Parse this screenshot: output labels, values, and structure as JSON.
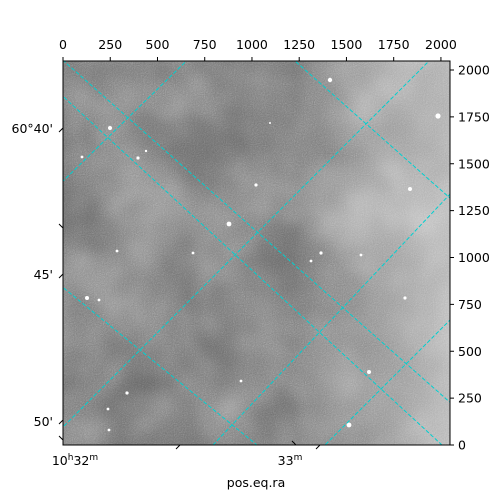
{
  "chart_data": {
    "type": "image",
    "title": "",
    "xlabel": "pos.eq.ra",
    "ylabel": "",
    "pixel_axes": {
      "x_ticks": [
        0,
        250,
        500,
        750,
        1000,
        1250,
        1500,
        1750,
        2000
      ],
      "y_ticks": [
        0,
        250,
        500,
        750,
        1000,
        1250,
        1500,
        1750,
        2000
      ],
      "x_tick_labels": [
        "0",
        "250",
        "500",
        "750",
        "1000",
        "1250",
        "1500",
        "1750",
        "2000"
      ],
      "y_tick_labels": [
        "0",
        "250",
        "500",
        "750",
        "1000",
        "1250",
        "1500",
        "1750",
        "2000"
      ],
      "xlim": [
        0,
        2048
      ],
      "ylim": [
        0,
        2048
      ]
    },
    "world_axes": {
      "ra_ticks": [
        {
          "label": "10h32m",
          "main": "10",
          "sup1": "h",
          "mid": "32",
          "sup2": "m"
        },
        {
          "label": "33m",
          "main": "",
          "sup1": "",
          "mid": "33",
          "sup2": "m"
        }
      ],
      "dec_ticks": [
        "60°40'",
        "45'",
        "50'"
      ]
    },
    "grid": true,
    "grid_color": "#00d0d0",
    "image_colormap": "gray"
  }
}
